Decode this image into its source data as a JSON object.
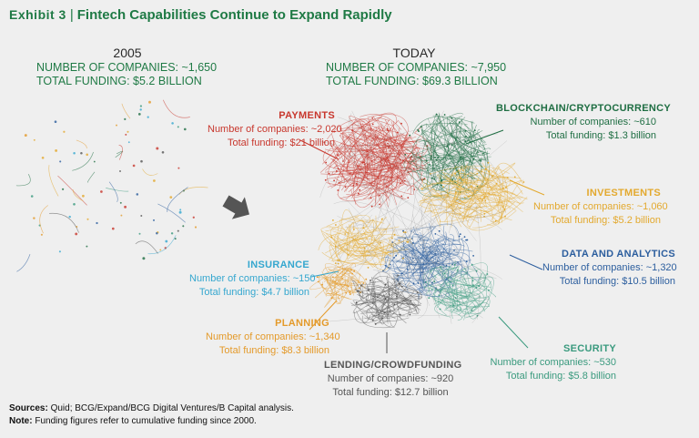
{
  "header": {
    "exhibit": "Exhibit 3",
    "title": "Fintech Capabilities Continue to Expand Rapidly"
  },
  "past": {
    "year": "2005",
    "companies": "NUMBER OF COMPANIES: ~1,650",
    "funding": "TOTAL FUNDING: $5.2 BILLION"
  },
  "today": {
    "year": "TODAY",
    "companies": "NUMBER OF COMPANIES: ~7,950",
    "funding": "TOTAL FUNDING: $69.3 BILLION"
  },
  "segments": [
    {
      "title": "PAYMENTS",
      "companies": "Number of companies: ~2,020",
      "funding": "Total funding: $21 billion",
      "color": "#c8372d"
    },
    {
      "title": "BLOCKCHAIN/CRYPTOCURRENCY",
      "companies": "Number of companies: ~610",
      "funding": "Total funding: $1.3 billion",
      "color": "#1f6e43"
    },
    {
      "title": "INVESTMENTS",
      "companies": "Number of companies: ~1,060",
      "funding": "Total funding: $5.2 billion",
      "color": "#e3a92e"
    },
    {
      "title": "DATA AND ANALYTICS",
      "companies": "Number of companies: ~1,320",
      "funding": "Total funding: $10.5 billion",
      "color": "#2c5e9e"
    },
    {
      "title": "INSURANCE",
      "companies": "Number of companies: ~150",
      "funding": "Total funding: $4.7 billion",
      "color": "#35a7cf"
    },
    {
      "title": "PLANNING",
      "companies": "Number of companies: ~1,340",
      "funding": "Total funding: $8.3 billion",
      "color": "#e49a2a"
    },
    {
      "title": "SECURITY",
      "companies": "Number of companies: ~530",
      "funding": "Total funding: $5.8 billion",
      "color": "#3a9a7e"
    },
    {
      "title": "LENDING/CROWDFUNDING",
      "companies": "Number of companies: ~920",
      "funding": "Total funding: $12.7 billion",
      "color": "#555555"
    }
  ],
  "footer": {
    "sources_label": "Sources:",
    "sources": " Quid; BCG/Expand/BCG Digital Ventures/B Capital analysis.",
    "note_label": "Note:",
    "note": " Funding figures refer to cumulative funding since 2000."
  }
}
